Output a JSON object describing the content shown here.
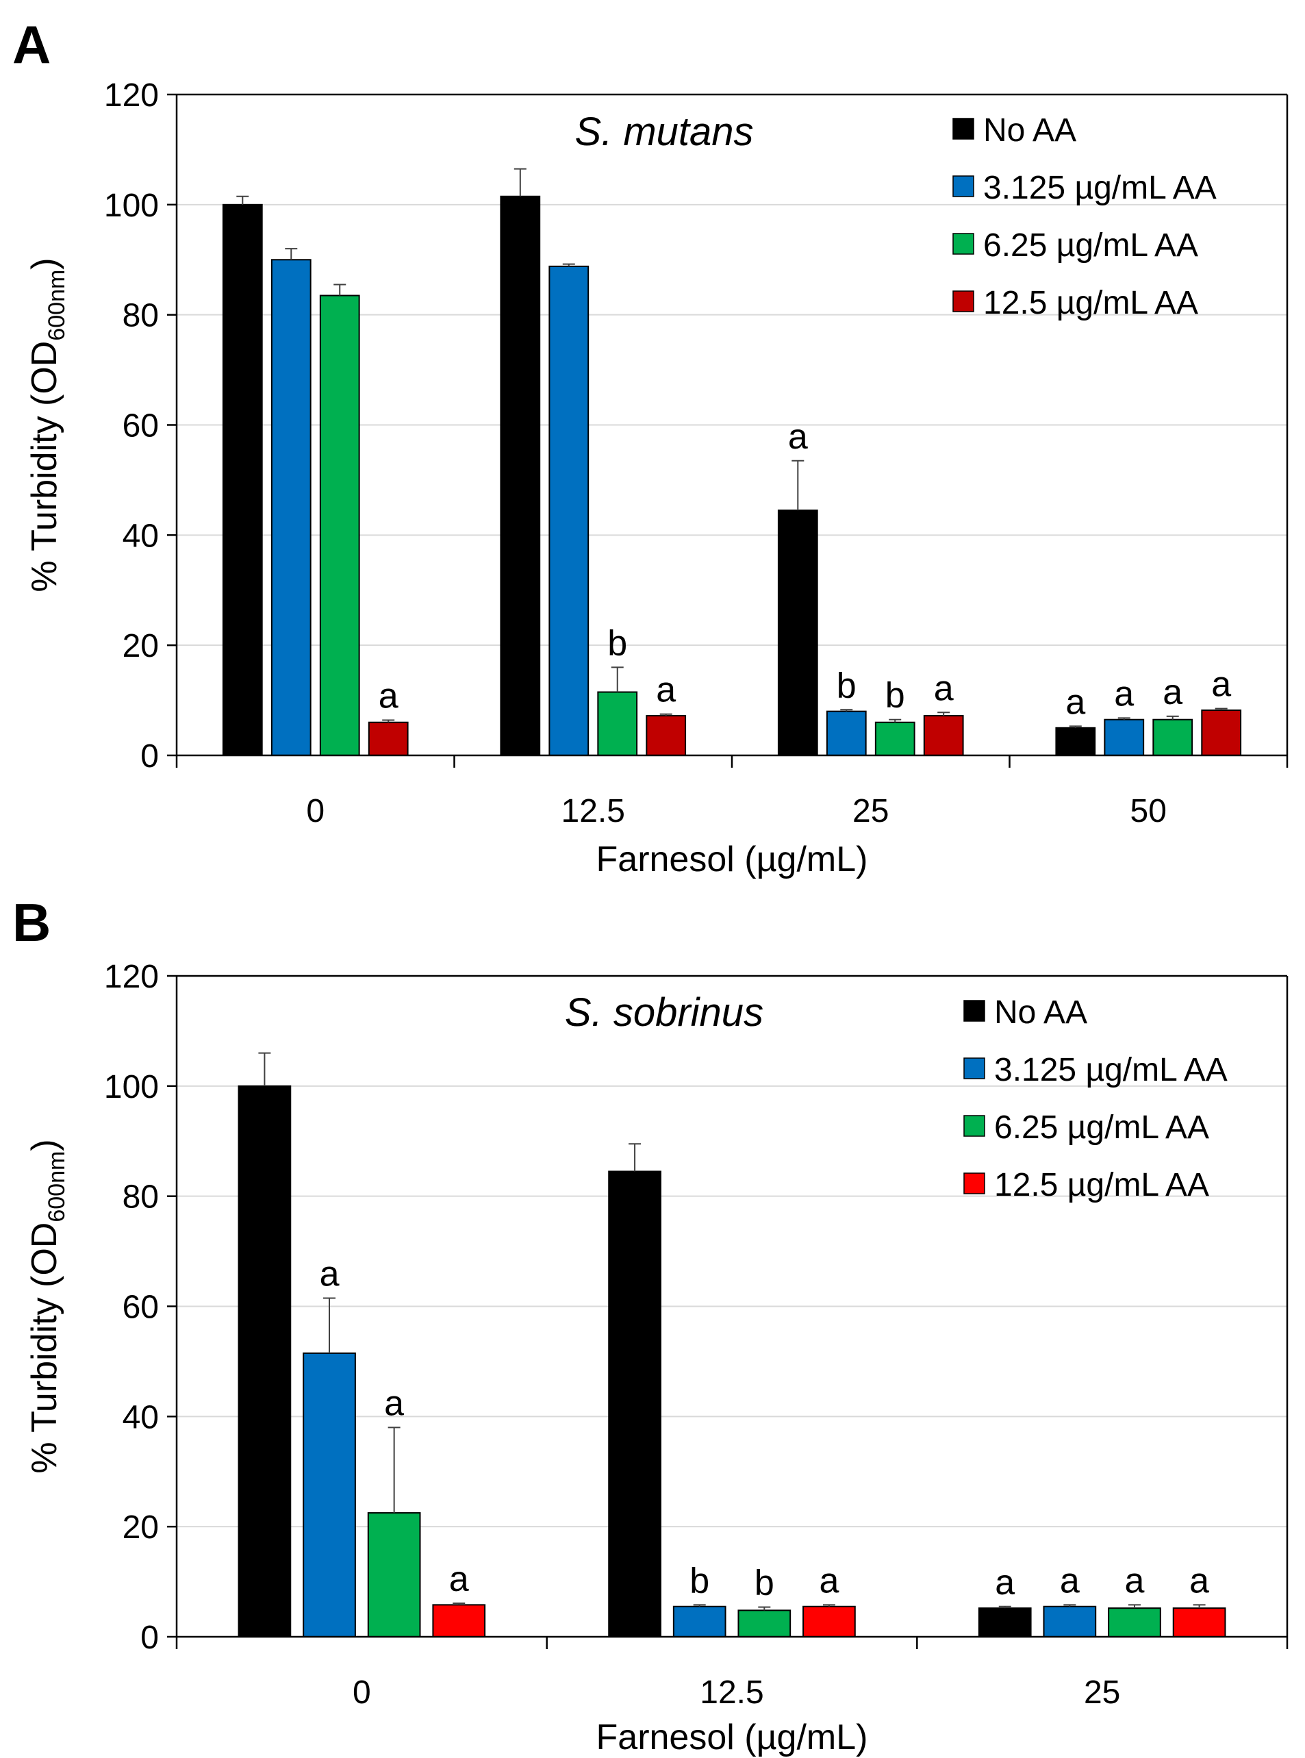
{
  "figure": {
    "panels": [
      "A",
      "B"
    ]
  },
  "chart_data": [
    {
      "type": "bar",
      "panel": "A",
      "title": "S. mutans",
      "xlabel": "Farnesol (µg/mL)",
      "ylabel_main": "% Turbidity (OD",
      "ylabel_sub": "600nm",
      "ylabel_close": ")",
      "ylim": [
        0,
        120
      ],
      "yticks": [
        "0",
        "20",
        "40",
        "60",
        "80",
        "100",
        "120"
      ],
      "categories": [
        "0",
        "12.5",
        "25",
        "50"
      ],
      "grid": true,
      "legend_position": "top-right",
      "series": [
        {
          "name": "No AA",
          "color": "#000000",
          "values": [
            100,
            101.5,
            44.5,
            5
          ],
          "errors": [
            1.5,
            5,
            9,
            0.3
          ],
          "labels": [
            "",
            "",
            "a",
            "a"
          ]
        },
        {
          "name": "3.125 µg/mL AA",
          "color": "#0070C0",
          "values": [
            90,
            88.8,
            8,
            6.5
          ],
          "errors": [
            2,
            0.4,
            0.3,
            0.3
          ],
          "labels": [
            "",
            "",
            "b",
            "a"
          ]
        },
        {
          "name": "6.25 µg/mL AA",
          "color": "#00B050",
          "values": [
            83.5,
            11.5,
            6,
            6.5
          ],
          "errors": [
            2,
            4.5,
            0.5,
            0.6
          ],
          "labels": [
            "",
            "b",
            "b",
            "a"
          ]
        },
        {
          "name": "12.5 µg/mL AA",
          "color": "#C00000",
          "values": [
            6,
            7.2,
            7.2,
            8.2
          ],
          "errors": [
            0.4,
            0.3,
            0.6,
            0.3
          ],
          "labels": [
            "a",
            "a",
            "a",
            "a"
          ]
        }
      ]
    },
    {
      "type": "bar",
      "panel": "B",
      "title": "S. sobrinus",
      "xlabel": "Farnesol (µg/mL)",
      "ylabel_main": "% Turbidity (OD",
      "ylabel_sub": "600nm",
      "ylabel_close": ")",
      "ylim": [
        0,
        120
      ],
      "yticks": [
        "0",
        "20",
        "40",
        "60",
        "80",
        "100",
        "120"
      ],
      "categories": [
        "0",
        "12.5",
        "25"
      ],
      "grid": true,
      "legend_position": "top-right",
      "series": [
        {
          "name": "No AA",
          "color": "#000000",
          "values": [
            100,
            84.5,
            5.2
          ],
          "errors": [
            6,
            5,
            0.3
          ],
          "labels": [
            "",
            "",
            "a"
          ]
        },
        {
          "name": "3.125 µg/mL AA",
          "color": "#0070C0",
          "values": [
            51.5,
            5.5,
            5.5
          ],
          "errors": [
            10,
            0.3,
            0.3
          ],
          "labels": [
            "a",
            "b",
            "a"
          ]
        },
        {
          "name": "6.25 µg/mL AA",
          "color": "#00B050",
          "values": [
            22.5,
            4.8,
            5.2
          ],
          "errors": [
            15.5,
            0.6,
            0.6
          ],
          "labels": [
            "a",
            "b",
            "a"
          ]
        },
        {
          "name": "12.5 µg/mL AA",
          "color": "#FF0000",
          "values": [
            5.8,
            5.5,
            5.2
          ],
          "errors": [
            0.3,
            0.3,
            0.6
          ],
          "labels": [
            "a",
            "a",
            "a"
          ]
        }
      ]
    }
  ]
}
